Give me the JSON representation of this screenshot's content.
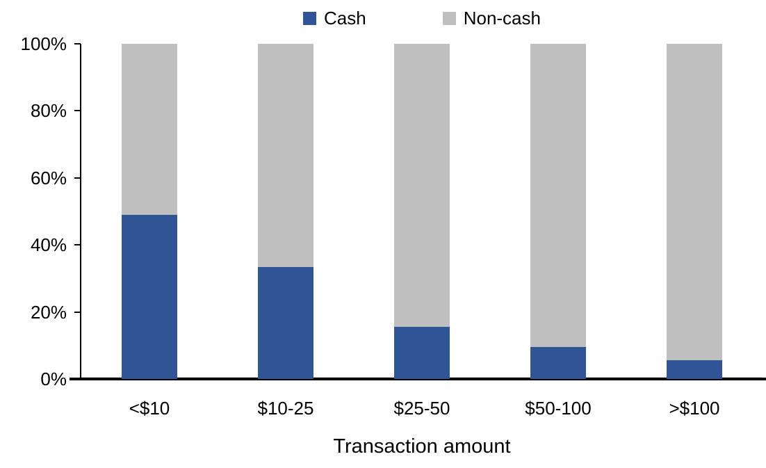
{
  "chart_data": {
    "type": "bar",
    "subtype": "stacked-100-percent",
    "title": "",
    "categories": [
      "<$10",
      "$10-25",
      "$25-50",
      "$50-100",
      ">$100"
    ],
    "series": [
      {
        "name": "Cash",
        "color": "#2F5596",
        "values": [
          49,
          33.5,
          15.5,
          9.5,
          5.5
        ]
      },
      {
        "name": "Non-cash",
        "color": "#BFBFBF",
        "values": [
          51,
          66.5,
          84.5,
          90.5,
          94.5
        ]
      }
    ],
    "xlabel": "Transaction amount",
    "ylabel": "",
    "y_ticks": [
      "0%",
      "20%",
      "40%",
      "60%",
      "80%",
      "100%"
    ],
    "ylim": [
      0,
      100
    ],
    "legend_position": "top-center",
    "grid": false,
    "axis_color": "#000000",
    "zero_line_color": "#d9d9d9",
    "background_color": "#ffffff"
  }
}
